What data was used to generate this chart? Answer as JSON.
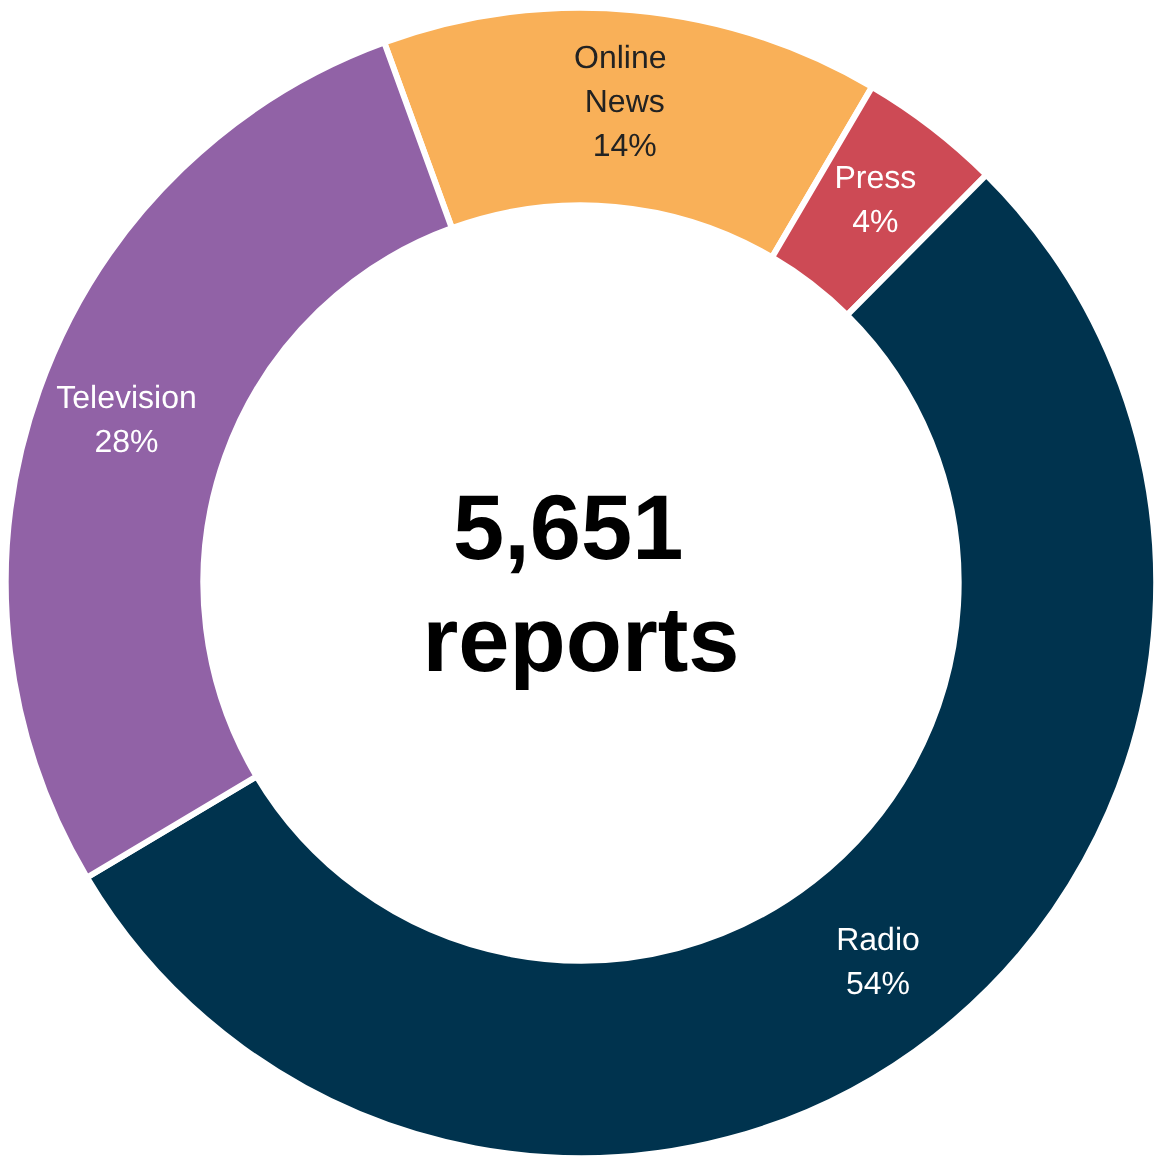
{
  "chart_data": {
    "type": "donut",
    "title": "5,651 reports",
    "categories": [
      "Online News",
      "Press",
      "Radio",
      "Television"
    ],
    "values": [
      14,
      4,
      54,
      28
    ],
    "colors": [
      "#f9b058",
      "#cd4a55",
      "#00334e",
      "#9162a6"
    ],
    "value_labels": [
      "14%",
      "4%",
      "54%",
      "28%"
    ],
    "legend": false
  }
}
